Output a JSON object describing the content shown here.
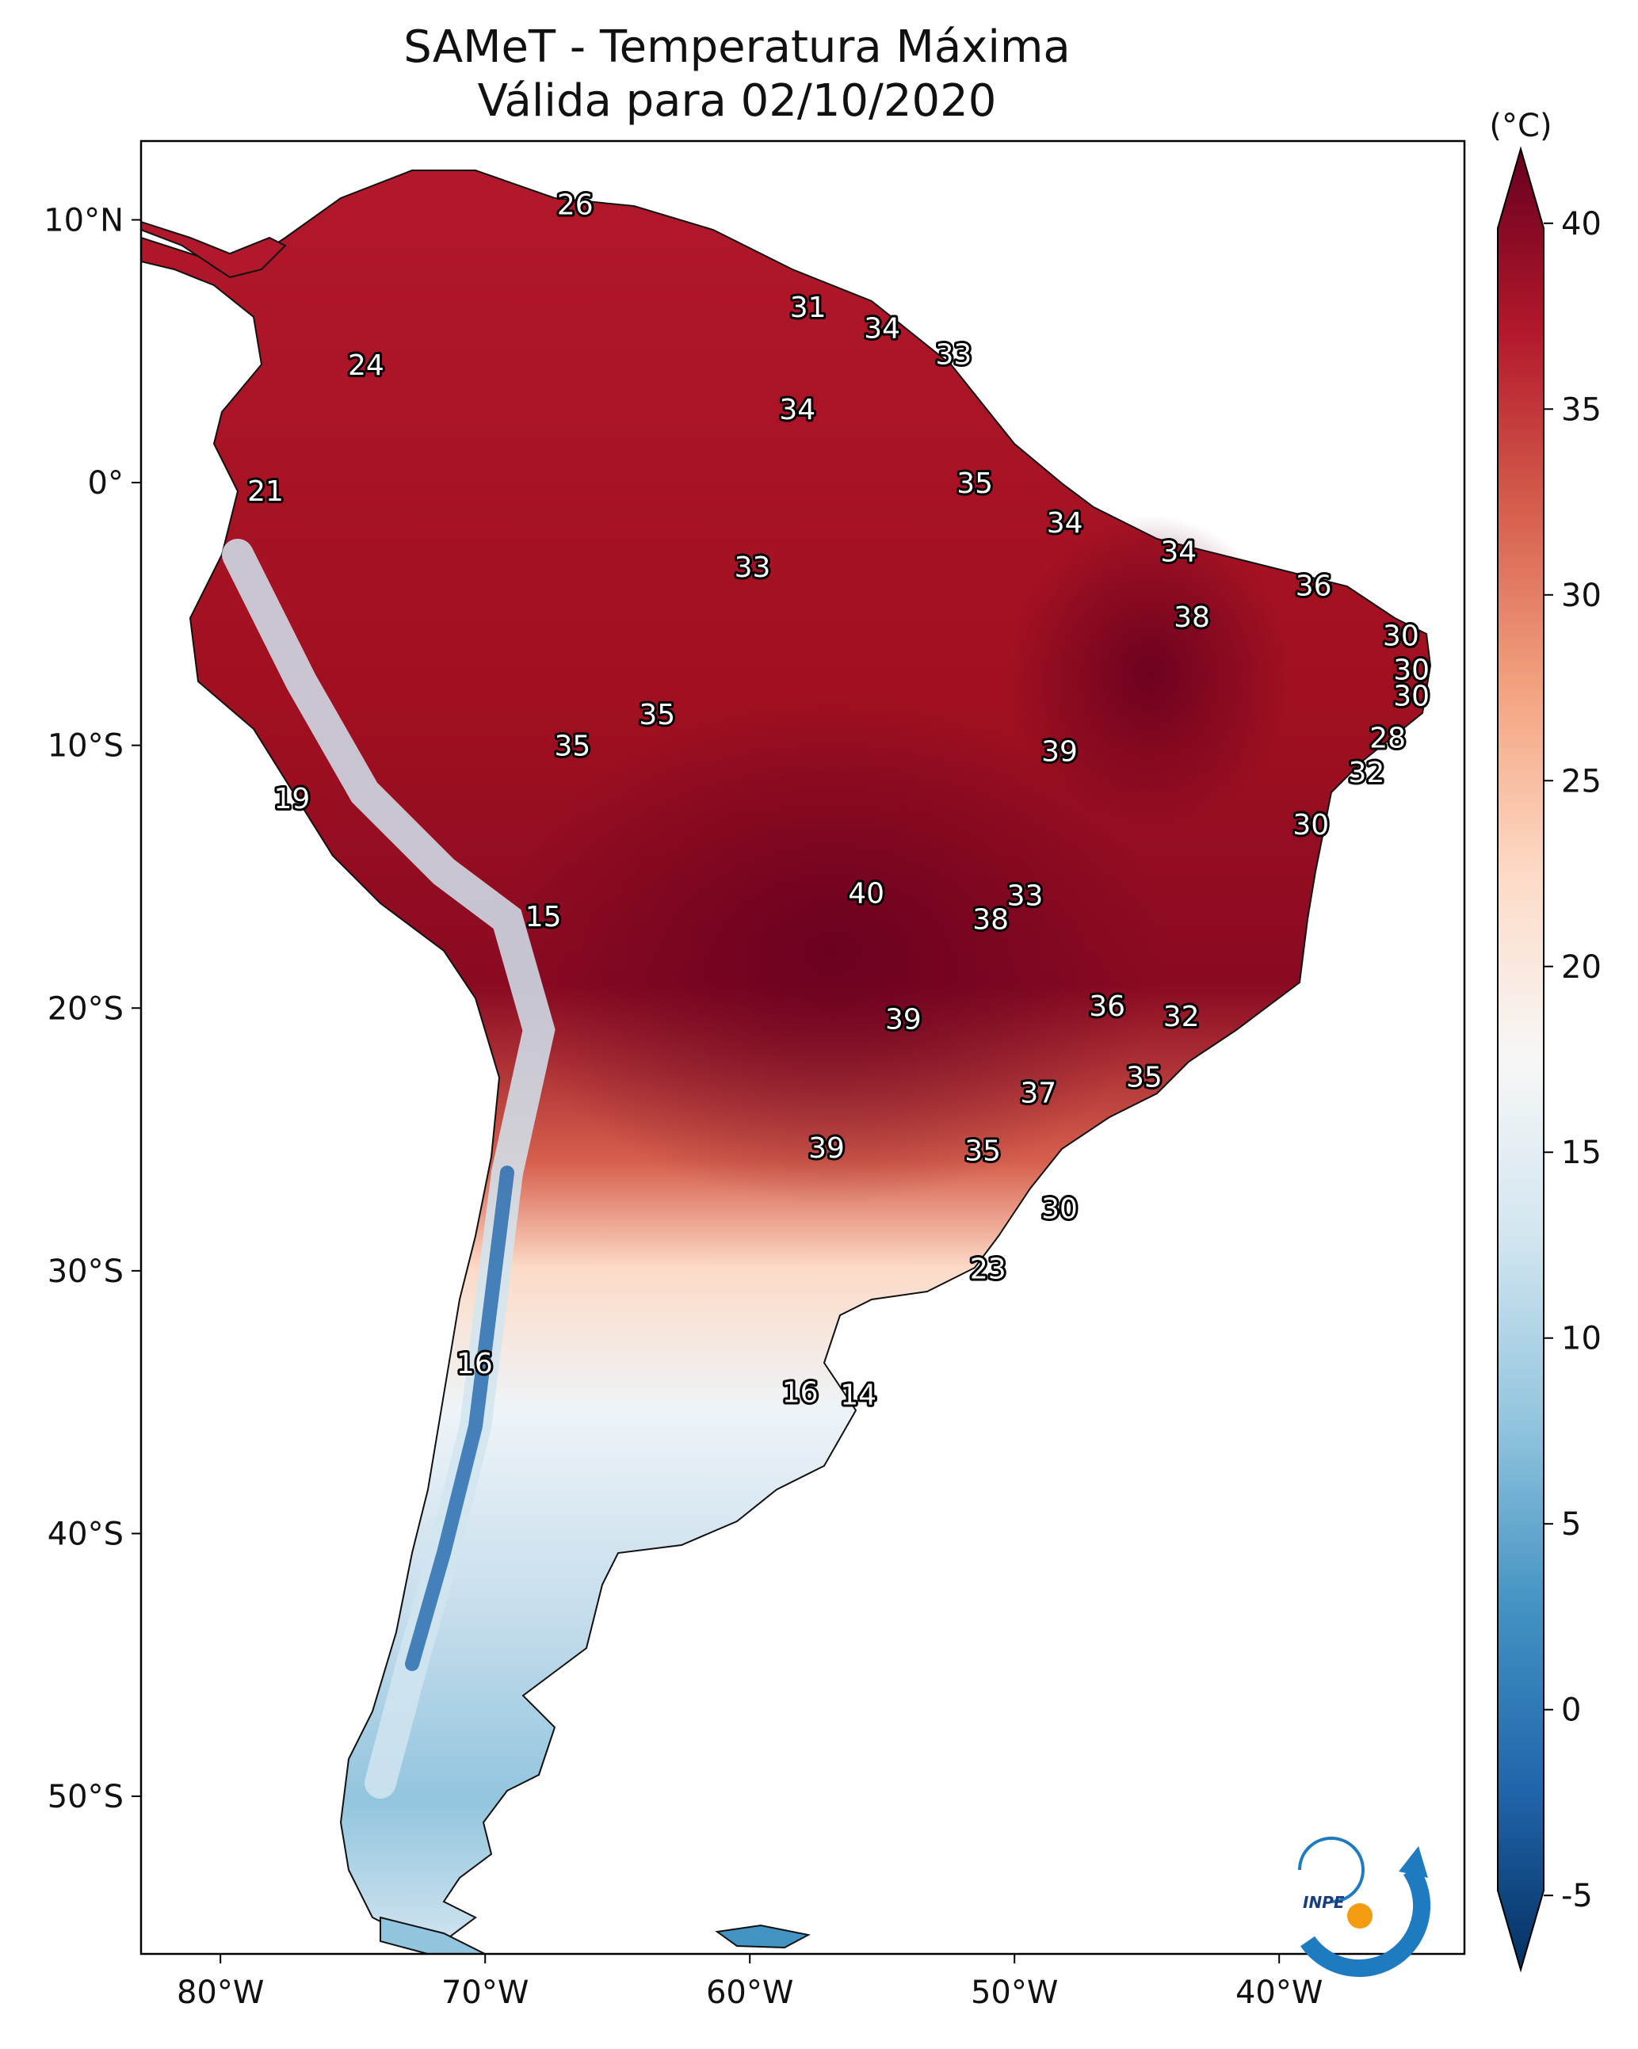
{
  "title_line1": "SAMeT - Temperatura Máxima",
  "title_line2": "Válida para 02/10/2020",
  "colorbar": {
    "unit": "(°C)",
    "ticks": [
      "40",
      "35",
      "30",
      "25",
      "20",
      "15",
      "10",
      "5",
      "0",
      "-5"
    ],
    "min": -7,
    "max": 42,
    "colors": [
      "#67001f",
      "#b2182b",
      "#d6604d",
      "#f4a582",
      "#fddbc7",
      "#f7f7f7",
      "#d1e5f0",
      "#92c5de",
      "#4393c3",
      "#2166ac",
      "#053061"
    ]
  },
  "axes": {
    "lon_labels": [
      "80°W",
      "70°W",
      "60°W",
      "50°W",
      "40°W"
    ],
    "lat_labels": [
      "10°N",
      "0°",
      "10°S",
      "20°S",
      "30°S",
      "40°S",
      "50°S"
    ]
  },
  "logo": {
    "text": "INPE"
  },
  "chart_data": {
    "type": "map",
    "title": "SAMeT - Temperatura Máxima Válida para 02/10/2020",
    "variable": "Temperatura Máxima",
    "unit": "°C",
    "lon_range": [
      -83,
      -33
    ],
    "lat_range": [
      -56,
      13
    ],
    "labels": [
      {
        "lon": -66.6,
        "lat": 10.6,
        "value": "26"
      },
      {
        "lon": -57.8,
        "lat": 6.7,
        "value": "31"
      },
      {
        "lon": -55.0,
        "lat": 5.9,
        "value": "34"
      },
      {
        "lon": -52.3,
        "lat": 4.9,
        "value": "33"
      },
      {
        "lon": -74.5,
        "lat": 4.5,
        "value": "24"
      },
      {
        "lon": -58.2,
        "lat": 2.8,
        "value": "34"
      },
      {
        "lon": -51.5,
        "lat": 0.0,
        "value": "35"
      },
      {
        "lon": -78.3,
        "lat": -0.3,
        "value": "21"
      },
      {
        "lon": -48.1,
        "lat": -1.5,
        "value": "34"
      },
      {
        "lon": -43.8,
        "lat": -2.6,
        "value": "34"
      },
      {
        "lon": -59.9,
        "lat": -3.2,
        "value": "33"
      },
      {
        "lon": -38.7,
        "lat": -3.9,
        "value": "36"
      },
      {
        "lon": -43.3,
        "lat": -5.1,
        "value": "38"
      },
      {
        "lon": -35.4,
        "lat": -5.8,
        "value": "30"
      },
      {
        "lon": -35.0,
        "lat": -7.1,
        "value": "30"
      },
      {
        "lon": -35.0,
        "lat": -8.1,
        "value": "30"
      },
      {
        "lon": -63.5,
        "lat": -8.8,
        "value": "35"
      },
      {
        "lon": -35.9,
        "lat": -9.7,
        "value": "28"
      },
      {
        "lon": -66.7,
        "lat": -10.0,
        "value": "35"
      },
      {
        "lon": -48.3,
        "lat": -10.2,
        "value": "39"
      },
      {
        "lon": -36.7,
        "lat": -11.0,
        "value": "32"
      },
      {
        "lon": -77.3,
        "lat": -12.0,
        "value": "19"
      },
      {
        "lon": -38.8,
        "lat": -13.0,
        "value": "30"
      },
      {
        "lon": -55.6,
        "lat": -15.6,
        "value": "40"
      },
      {
        "lon": -49.6,
        "lat": -15.7,
        "value": "33"
      },
      {
        "lon": -50.9,
        "lat": -16.6,
        "value": "38"
      },
      {
        "lon": -67.8,
        "lat": -16.5,
        "value": "15"
      },
      {
        "lon": -46.5,
        "lat": -19.9,
        "value": "36"
      },
      {
        "lon": -43.7,
        "lat": -20.3,
        "value": "32"
      },
      {
        "lon": -54.2,
        "lat": -20.4,
        "value": "39"
      },
      {
        "lon": -45.1,
        "lat": -22.6,
        "value": "35"
      },
      {
        "lon": -49.1,
        "lat": -23.2,
        "value": "37"
      },
      {
        "lon": -57.1,
        "lat": -25.3,
        "value": "39"
      },
      {
        "lon": -51.2,
        "lat": -25.4,
        "value": "35"
      },
      {
        "lon": -48.3,
        "lat": -27.6,
        "value": "30"
      },
      {
        "lon": -51.0,
        "lat": -29.9,
        "value": "23"
      },
      {
        "lon": -70.4,
        "lat": -33.5,
        "value": "16"
      },
      {
        "lon": -58.1,
        "lat": -34.6,
        "value": "16"
      },
      {
        "lon": -55.9,
        "lat": -34.7,
        "value": "14"
      }
    ]
  }
}
